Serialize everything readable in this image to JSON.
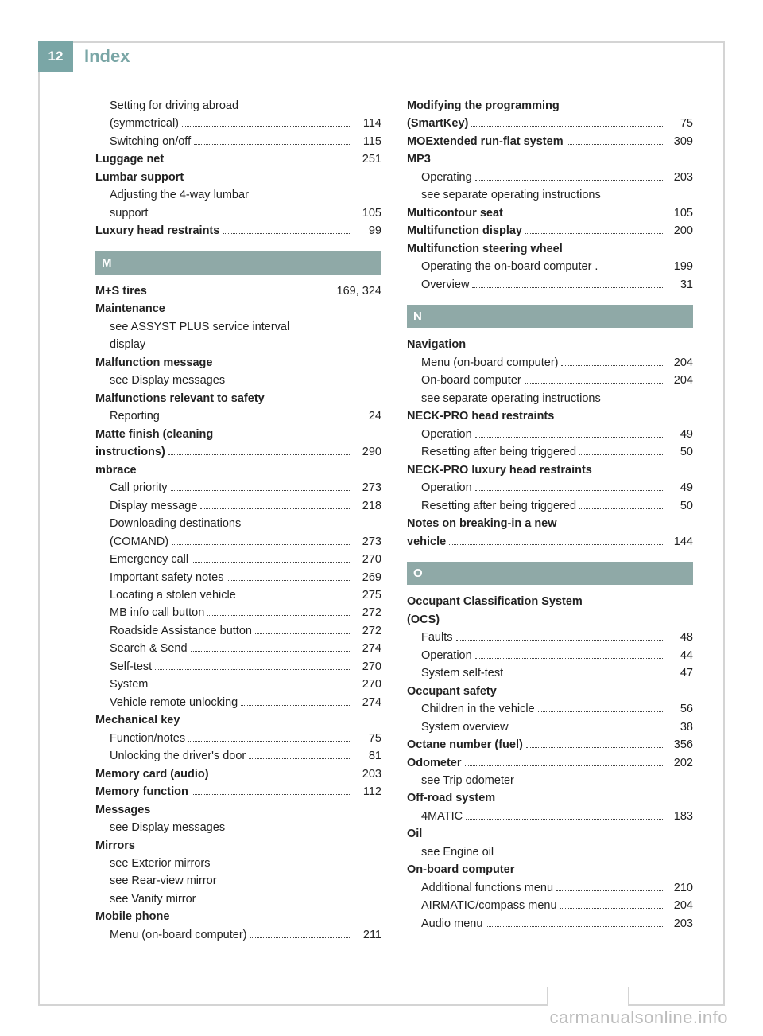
{
  "colors": {
    "accent": "#7aa6a6",
    "section_bg": "#8fa9a7",
    "frame": "#d4d4d4",
    "text": "#222222",
    "watermark": "#bcbcbc"
  },
  "page_number": "12",
  "title": "Index",
  "watermark": "carmanualsonline.info",
  "left_column": [
    {
      "type": "sub",
      "label": "Setting for driving abroad"
    },
    {
      "type": "sub-cont",
      "label": "(symmetrical)",
      "page": "114"
    },
    {
      "type": "sub",
      "label": "Switching on/off",
      "page": "115"
    },
    {
      "type": "bold",
      "label": "Luggage net",
      "page": "251"
    },
    {
      "type": "bold-noref",
      "label": "Lumbar support"
    },
    {
      "type": "sub",
      "label": "Adjusting the 4-way lumbar"
    },
    {
      "type": "sub-cont",
      "label": "support",
      "page": "105"
    },
    {
      "type": "bold",
      "label": "Luxury head restraints",
      "page": "99"
    },
    {
      "type": "section",
      "label": "M"
    },
    {
      "type": "bold",
      "label": "M+S tires",
      "page": "169, 324"
    },
    {
      "type": "bold-noref",
      "label": "Maintenance"
    },
    {
      "type": "sub-noref",
      "label": "see ASSYST PLUS service interval"
    },
    {
      "type": "sub-noref",
      "label": "display"
    },
    {
      "type": "bold-noref",
      "label": "Malfunction message"
    },
    {
      "type": "sub-noref",
      "label": "see Display messages"
    },
    {
      "type": "bold-noref",
      "label": "Malfunctions relevant to safety"
    },
    {
      "type": "sub",
      "label": "Reporting",
      "page": "24"
    },
    {
      "type": "bold-noref",
      "label": "Matte finish (cleaning"
    },
    {
      "type": "bold",
      "label": "instructions)",
      "page": "290"
    },
    {
      "type": "bold-noref",
      "label": "mbrace"
    },
    {
      "type": "sub",
      "label": "Call priority",
      "page": "273"
    },
    {
      "type": "sub",
      "label": "Display message",
      "page": "218"
    },
    {
      "type": "sub-noref",
      "label": "Downloading destinations"
    },
    {
      "type": "sub-cont",
      "label": "(COMAND)",
      "page": "273"
    },
    {
      "type": "sub",
      "label": "Emergency call",
      "page": "270"
    },
    {
      "type": "sub",
      "label": "Important safety notes",
      "page": "269"
    },
    {
      "type": "sub",
      "label": "Locating a stolen vehicle",
      "page": "275"
    },
    {
      "type": "sub",
      "label": "MB info call button",
      "page": "272"
    },
    {
      "type": "sub",
      "label": "Roadside Assistance button",
      "page": "272"
    },
    {
      "type": "sub",
      "label": "Search & Send",
      "page": "274"
    },
    {
      "type": "sub",
      "label": "Self-test",
      "page": "270"
    },
    {
      "type": "sub",
      "label": "System",
      "page": "270"
    },
    {
      "type": "sub",
      "label": "Vehicle remote unlocking",
      "page": "274"
    },
    {
      "type": "bold-noref",
      "label": "Mechanical key"
    },
    {
      "type": "sub",
      "label": "Function/notes",
      "page": "75"
    },
    {
      "type": "sub",
      "label": "Unlocking the driver's door",
      "page": "81"
    },
    {
      "type": "bold",
      "label": "Memory card (audio)",
      "page": "203"
    },
    {
      "type": "bold",
      "label": "Memory function",
      "page": "112"
    },
    {
      "type": "bold-noref",
      "label": "Messages"
    },
    {
      "type": "sub-noref",
      "label": "see Display messages"
    },
    {
      "type": "bold-noref",
      "label": "Mirrors"
    },
    {
      "type": "sub-noref",
      "label": "see Exterior mirrors"
    },
    {
      "type": "sub-noref",
      "label": "see Rear-view mirror"
    },
    {
      "type": "sub-noref",
      "label": "see Vanity mirror"
    },
    {
      "type": "bold-noref",
      "label": "Mobile phone"
    },
    {
      "type": "sub",
      "label": "Menu (on-board computer)",
      "page": "211"
    }
  ],
  "right_column": [
    {
      "type": "bold-noref",
      "label": "Modifying the programming"
    },
    {
      "type": "bold",
      "label": "(SmartKey)",
      "page": "75"
    },
    {
      "type": "bold",
      "label": "MOExtended run-flat system",
      "page": "309"
    },
    {
      "type": "bold-noref",
      "label": "MP3"
    },
    {
      "type": "sub",
      "label": "Operating",
      "page": "203"
    },
    {
      "type": "sub-noref",
      "label": "see separate operating instructions"
    },
    {
      "type": "bold",
      "label": "Multicontour seat",
      "page": "105"
    },
    {
      "type": "bold",
      "label": "Multifunction display",
      "page": "200"
    },
    {
      "type": "bold-noref",
      "label": "Multifunction steering wheel"
    },
    {
      "type": "sub",
      "label": "Operating the on-board computer .",
      "page": "199",
      "nodots": true
    },
    {
      "type": "sub",
      "label": "Overview",
      "page": "31"
    },
    {
      "type": "section",
      "label": "N"
    },
    {
      "type": "bold-noref",
      "label": "Navigation"
    },
    {
      "type": "sub",
      "label": "Menu (on-board computer)",
      "page": "204"
    },
    {
      "type": "sub",
      "label": "On-board computer",
      "page": "204"
    },
    {
      "type": "sub-noref",
      "label": "see separate operating instructions"
    },
    {
      "type": "bold-noref",
      "label": "NECK-PRO head restraints"
    },
    {
      "type": "sub",
      "label": "Operation",
      "page": "49"
    },
    {
      "type": "sub",
      "label": "Resetting after being triggered",
      "page": "50"
    },
    {
      "type": "bold-noref",
      "label": "NECK-PRO luxury head restraints"
    },
    {
      "type": "sub",
      "label": "Operation",
      "page": "49"
    },
    {
      "type": "sub",
      "label": "Resetting after being triggered",
      "page": "50"
    },
    {
      "type": "bold-noref",
      "label": "Notes on breaking-in a new"
    },
    {
      "type": "bold",
      "label": "vehicle",
      "page": "144"
    },
    {
      "type": "section",
      "label": "O"
    },
    {
      "type": "bold-noref",
      "label": "Occupant Classification System"
    },
    {
      "type": "bold-noref",
      "label": "(OCS)"
    },
    {
      "type": "sub",
      "label": "Faults",
      "page": "48"
    },
    {
      "type": "sub",
      "label": "Operation",
      "page": "44"
    },
    {
      "type": "sub",
      "label": "System self-test",
      "page": "47"
    },
    {
      "type": "bold-noref",
      "label": "Occupant safety"
    },
    {
      "type": "sub",
      "label": "Children in the vehicle",
      "page": "56"
    },
    {
      "type": "sub",
      "label": "System overview",
      "page": "38"
    },
    {
      "type": "bold",
      "label": "Octane number (fuel)",
      "page": "356"
    },
    {
      "type": "bold",
      "label": "Odometer",
      "page": "202"
    },
    {
      "type": "sub-noref",
      "label": "see Trip odometer"
    },
    {
      "type": "bold-noref",
      "label": "Off-road system"
    },
    {
      "type": "sub",
      "label": "4MATIC",
      "page": "183"
    },
    {
      "type": "bold-noref",
      "label": "Oil"
    },
    {
      "type": "sub-noref",
      "label": "see Engine oil"
    },
    {
      "type": "bold-noref",
      "label": "On-board computer"
    },
    {
      "type": "sub",
      "label": "Additional functions menu",
      "page": "210"
    },
    {
      "type": "sub",
      "label": "AIRMATIC/compass menu",
      "page": "204"
    },
    {
      "type": "sub",
      "label": "Audio menu",
      "page": "203"
    }
  ]
}
